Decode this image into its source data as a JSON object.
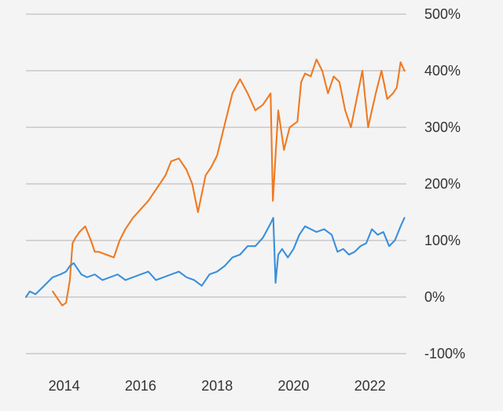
{
  "chart_data": {
    "type": "line",
    "grid": true,
    "legend": "none",
    "xlim": [
      2013.0,
      2022.95
    ],
    "ylim": [
      -100,
      500
    ],
    "y_tick_values": [
      500,
      400,
      300,
      200,
      100,
      0,
      -100
    ],
    "y_tick_labels": [
      "500%",
      "400%",
      "300%",
      "200%",
      "100%",
      "0%",
      "-100%"
    ],
    "x_tick_values": [
      2014,
      2016,
      2018,
      2020,
      2022
    ],
    "x_tick_labels": [
      "2014",
      "2016",
      "2018",
      "2020",
      "2022"
    ],
    "series": [
      {
        "color": "#ef7a22",
        "x": [
          2013.7,
          2013.8,
          2013.95,
          2014.05,
          2014.15,
          2014.22,
          2014.3,
          2014.4,
          2014.55,
          2014.7,
          2014.8,
          2014.9,
          2015.1,
          2015.3,
          2015.45,
          2015.6,
          2015.8,
          2016.0,
          2016.2,
          2016.35,
          2016.5,
          2016.65,
          2016.8,
          2017.0,
          2017.2,
          2017.35,
          2017.5,
          2017.7,
          2017.85,
          2018.0,
          2018.2,
          2018.4,
          2018.6,
          2018.8,
          2019.0,
          2019.2,
          2019.4,
          2019.46,
          2019.52,
          2019.6,
          2019.75,
          2019.9,
          2020.1,
          2020.2,
          2020.3,
          2020.45,
          2020.6,
          2020.75,
          2020.9,
          2021.05,
          2021.2,
          2021.35,
          2021.5,
          2021.65,
          2021.8,
          2021.95,
          2022.05,
          2022.15,
          2022.3,
          2022.45,
          2022.6,
          2022.7,
          2022.8,
          2022.9
        ],
        "values": [
          10,
          0,
          -15,
          -10,
          30,
          95,
          105,
          115,
          125,
          100,
          80,
          80,
          75,
          70,
          100,
          120,
          140,
          155,
          170,
          185,
          200,
          215,
          240,
          245,
          225,
          200,
          150,
          215,
          230,
          250,
          305,
          360,
          385,
          360,
          330,
          340,
          360,
          170,
          240,
          330,
          260,
          300,
          310,
          380,
          395,
          390,
          420,
          400,
          360,
          390,
          380,
          330,
          300,
          350,
          400,
          300,
          330,
          360,
          400,
          350,
          360,
          370,
          415,
          400
        ]
      },
      {
        "color": "#3a8fdd",
        "x": [
          2013.0,
          2013.1,
          2013.25,
          2013.4,
          2013.55,
          2013.7,
          2013.9,
          2014.05,
          2014.15,
          2014.25,
          2014.45,
          2014.6,
          2014.8,
          2015.0,
          2015.2,
          2015.4,
          2015.6,
          2015.8,
          2016.0,
          2016.2,
          2016.4,
          2016.6,
          2016.8,
          2017.0,
          2017.2,
          2017.4,
          2017.6,
          2017.8,
          2018.0,
          2018.2,
          2018.4,
          2018.6,
          2018.8,
          2019.0,
          2019.2,
          2019.4,
          2019.47,
          2019.53,
          2019.6,
          2019.7,
          2019.85,
          2020.0,
          2020.15,
          2020.3,
          2020.45,
          2020.6,
          2020.8,
          2021.0,
          2021.15,
          2021.3,
          2021.45,
          2021.6,
          2021.75,
          2021.9,
          2022.05,
          2022.2,
          2022.35,
          2022.5,
          2022.65,
          2022.8,
          2022.9
        ],
        "values": [
          0,
          10,
          5,
          15,
          25,
          35,
          40,
          45,
          55,
          60,
          40,
          35,
          40,
          30,
          35,
          40,
          30,
          35,
          40,
          45,
          30,
          35,
          40,
          45,
          35,
          30,
          20,
          40,
          45,
          55,
          70,
          75,
          90,
          90,
          105,
          130,
          140,
          25,
          75,
          85,
          70,
          85,
          110,
          125,
          120,
          115,
          120,
          110,
          80,
          85,
          75,
          80,
          90,
          95,
          120,
          110,
          115,
          90,
          100,
          125,
          140
        ]
      }
    ]
  }
}
